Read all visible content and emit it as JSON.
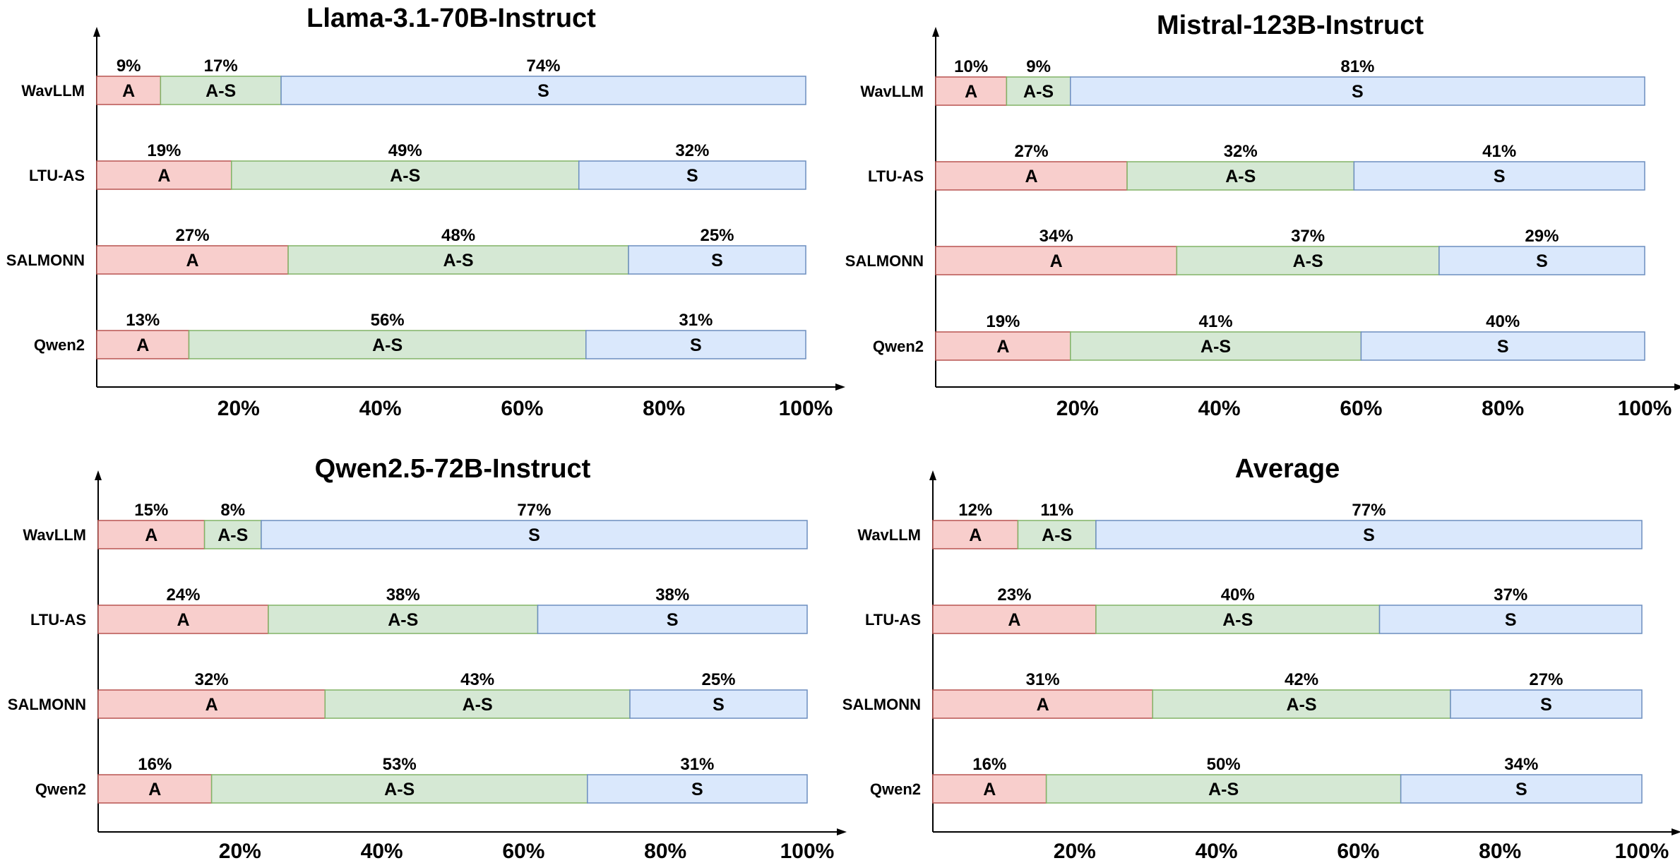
{
  "chart_data": [
    {
      "type": "bar",
      "orientation": "horizontal",
      "stacked": true,
      "title": "Llama-3.1-70B-Instruct",
      "categories": [
        "WavLLM",
        "LTU-AS",
        "SALMONN",
        "Qwen2"
      ],
      "series": [
        {
          "name": "A",
          "values": [
            9,
            19,
            27,
            13
          ]
        },
        {
          "name": "A-S",
          "values": [
            17,
            49,
            48,
            56
          ]
        },
        {
          "name": "S",
          "values": [
            74,
            32,
            25,
            31
          ]
        }
      ],
      "xticks": [
        "20%",
        "40%",
        "60%",
        "80%",
        "100%"
      ],
      "xlim": [
        0,
        100
      ]
    },
    {
      "type": "bar",
      "orientation": "horizontal",
      "stacked": true,
      "title": "Mistral-123B-Instruct",
      "categories": [
        "WavLLM",
        "LTU-AS",
        "SALMONN",
        "Qwen2"
      ],
      "series": [
        {
          "name": "A",
          "values": [
            10,
            27,
            34,
            19
          ]
        },
        {
          "name": "A-S",
          "values": [
            9,
            32,
            37,
            41
          ]
        },
        {
          "name": "S",
          "values": [
            81,
            41,
            29,
            40
          ]
        }
      ],
      "xticks": [
        "20%",
        "40%",
        "60%",
        "80%",
        "100%"
      ],
      "xlim": [
        0,
        100
      ]
    },
    {
      "type": "bar",
      "orientation": "horizontal",
      "stacked": true,
      "title": "Qwen2.5-72B-Instruct",
      "categories": [
        "WavLLM",
        "LTU-AS",
        "SALMONN",
        "Qwen2"
      ],
      "series": [
        {
          "name": "A",
          "values": [
            15,
            24,
            32,
            16
          ]
        },
        {
          "name": "A-S",
          "values": [
            8,
            38,
            43,
            53
          ]
        },
        {
          "name": "S",
          "values": [
            77,
            38,
            25,
            31
          ]
        }
      ],
      "xticks": [
        "20%",
        "40%",
        "60%",
        "80%",
        "100%"
      ],
      "xlim": [
        0,
        100
      ]
    },
    {
      "type": "bar",
      "orientation": "horizontal",
      "stacked": true,
      "title": "Average",
      "categories": [
        "WavLLM",
        "LTU-AS",
        "SALMONN",
        "Qwen2"
      ],
      "series": [
        {
          "name": "A",
          "values": [
            12,
            23,
            31,
            16
          ]
        },
        {
          "name": "A-S",
          "values": [
            11,
            40,
            42,
            50
          ]
        },
        {
          "name": "S",
          "values": [
            77,
            37,
            27,
            34
          ]
        }
      ],
      "xticks": [
        "20%",
        "40%",
        "60%",
        "80%",
        "100%"
      ],
      "xlim": [
        0,
        100
      ]
    }
  ],
  "colors": {
    "A": {
      "fill": "#f8cecc",
      "stroke": "#b85450"
    },
    "A-S": {
      "fill": "#d5e8d4",
      "stroke": "#82b366"
    },
    "S": {
      "fill": "#dae8fc",
      "stroke": "#6c8ebf"
    },
    "axis": "#000000"
  }
}
